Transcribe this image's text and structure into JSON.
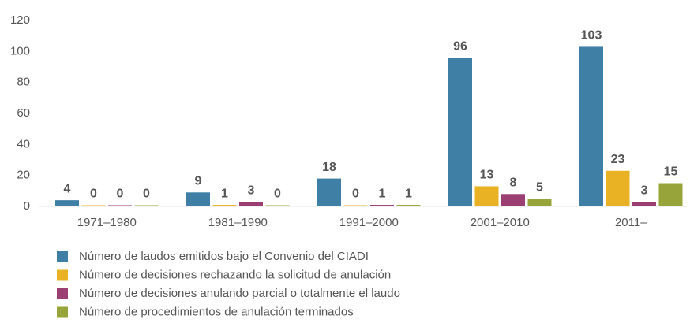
{
  "chart_data": {
    "type": "bar",
    "categories": [
      "1971–1980",
      "1981–1990",
      "1991–2000",
      "2001–2010",
      "2011–"
    ],
    "series": [
      {
        "name": "Número de laudos emitidos bajo el Convenio del CIADI",
        "color": "#3f7fa6",
        "values": [
          4,
          9,
          18,
          96,
          103
        ]
      },
      {
        "name": "Número de decisiones rechazando la solicitud de anulación",
        "color": "#e8b224",
        "values": [
          0,
          1,
          0,
          13,
          23
        ]
      },
      {
        "name": "Número de decisiones anulando parcial o totalmente el laudo",
        "color": "#9b3f73",
        "values": [
          0,
          3,
          1,
          8,
          3
        ]
      },
      {
        "name": "Número de procedimientos de anulación terminados",
        "color": "#97a43a",
        "values": [
          0,
          0,
          1,
          5,
          15
        ]
      }
    ],
    "ylim": [
      0,
      120
    ],
    "yticks": [
      0,
      20,
      40,
      60,
      80,
      100,
      120
    ],
    "grid": false
  }
}
